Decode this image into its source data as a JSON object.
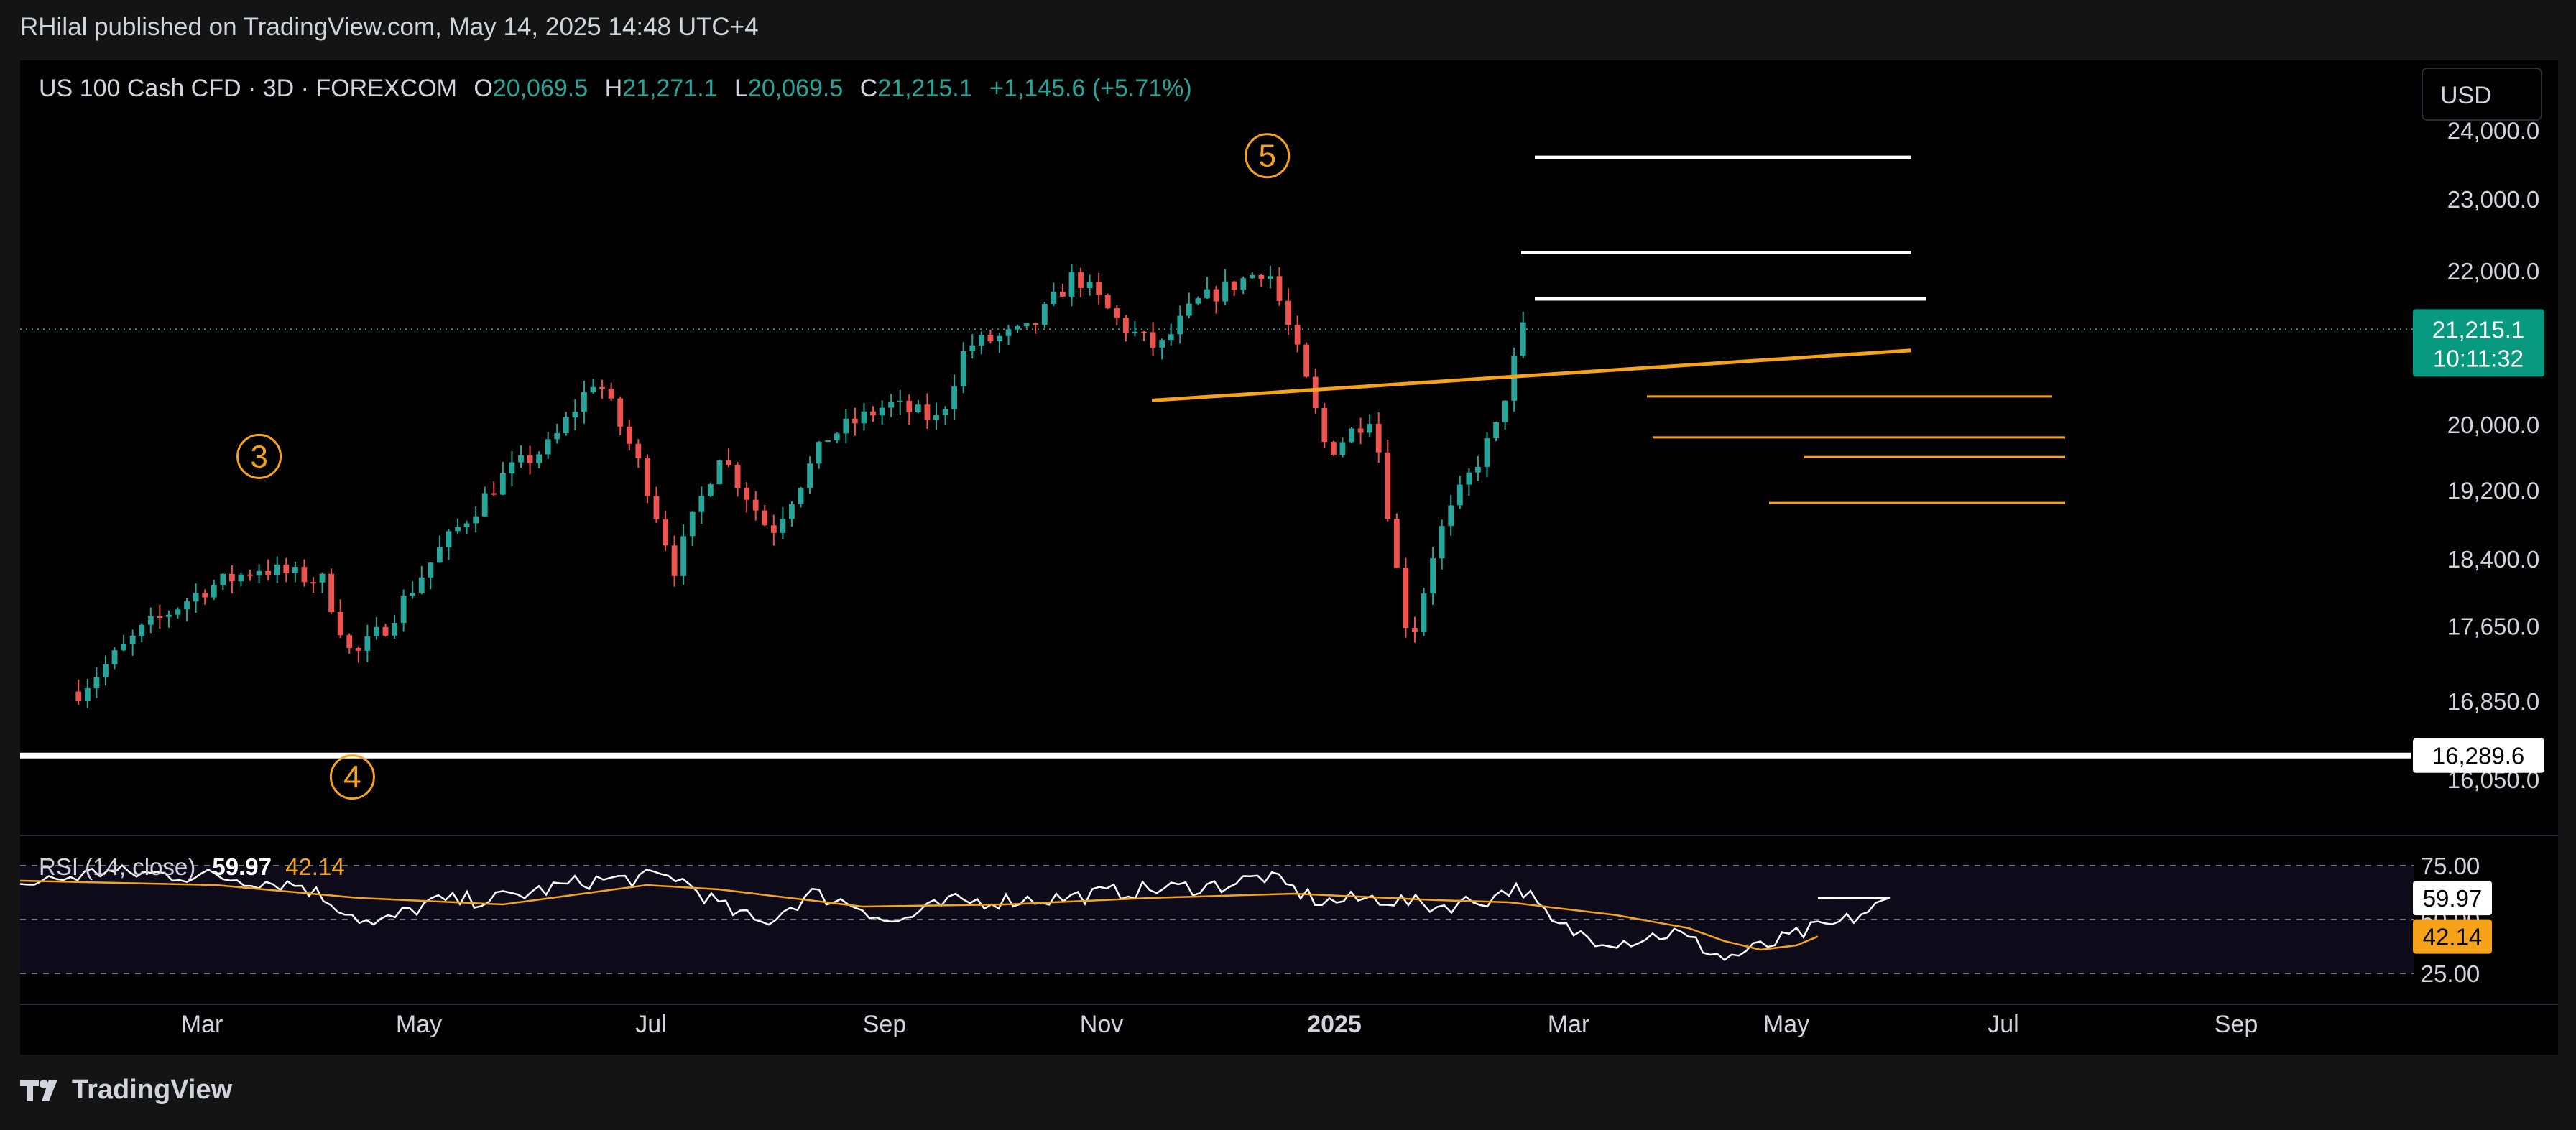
{
  "header": {
    "publish_text": "RHilal published on TradingView.com, May 14, 2025 14:48 UTC+4"
  },
  "legend": {
    "symbol": "US 100 Cash CFD · 3D · FOREXCOM",
    "open_label": "O",
    "open": "20,069.5",
    "high_label": "H",
    "high": "21,271.1",
    "low_label": "L",
    "low": "20,069.5",
    "close_label": "C",
    "close": "21,215.1",
    "change": "+1,145.6 (+5.71%)"
  },
  "currency_button": "USD",
  "price_axis": {
    "ticks": [
      "24,000.0",
      "23,000.0",
      "22,000.0",
      "20,000.0",
      "19,200.0",
      "18,400.0",
      "17,650.0",
      "16,850.0",
      "16,050.0"
    ],
    "current_price_label": "21,215.1",
    "countdown_label": "10:11:32",
    "support_label": "16,289.6"
  },
  "time_axis": {
    "ticks": [
      "Mar",
      "May",
      "Jul",
      "Sep",
      "Nov",
      "2025",
      "Mar",
      "May",
      "Jul",
      "Sep"
    ]
  },
  "wave_labels": [
    "3",
    "4",
    "5"
  ],
  "rsi": {
    "title": "RSI (14, close)",
    "value": "59.97",
    "ma_value": "42.14",
    "levels": [
      "75.00",
      "50.00",
      "25.00"
    ]
  },
  "colors": {
    "up": "#26a69a",
    "down": "#ef5350",
    "annotation": "#f7a21b",
    "rsi_line": "#ffffff",
    "rsi_ma": "#f7a21b",
    "price_badge": "#089981"
  },
  "footer": {
    "brand": "TradingView"
  },
  "chart_data": {
    "type": "candlestick",
    "symbol": "US 100 Cash CFD",
    "timeframe": "3D",
    "price_scale": "log",
    "approximate_path": [
      [
        "2024-01-20",
        16950
      ],
      [
        "2024-02-10",
        17600
      ],
      [
        "2024-03-01",
        18050
      ],
      [
        "2024-03-20",
        18300
      ],
      [
        "2024-04-10",
        18150
      ],
      [
        "2024-04-20",
        17300
      ],
      [
        "2024-05-01",
        17650
      ],
      [
        "2024-05-20",
        18550
      ],
      [
        "2024-06-10",
        19400
      ],
      [
        "2024-06-25",
        19750
      ],
      [
        "2024-07-10",
        20600
      ],
      [
        "2024-07-25",
        19450
      ],
      [
        "2024-08-05",
        18300
      ],
      [
        "2024-08-20",
        19650
      ],
      [
        "2024-09-06",
        18700
      ],
      [
        "2024-09-25",
        19850
      ],
      [
        "2024-10-15",
        20250
      ],
      [
        "2024-11-01",
        20050
      ],
      [
        "2024-11-10",
        21000
      ],
      [
        "2024-12-01",
        21200
      ],
      [
        "2024-12-16",
        21950
      ],
      [
        "2025-01-01",
        21250
      ],
      [
        "2025-01-13",
        20950
      ],
      [
        "2025-01-25",
        21550
      ],
      [
        "2025-02-18",
        22050
      ],
      [
        "2025-02-28",
        20900
      ],
      [
        "2025-03-10",
        19650
      ],
      [
        "2025-03-25",
        20150
      ],
      [
        "2025-04-04",
        17800
      ],
      [
        "2025-04-07",
        17500
      ],
      [
        "2025-04-15",
        18600
      ],
      [
        "2025-04-25",
        19300
      ],
      [
        "2025-05-05",
        19950
      ],
      [
        "2025-05-14",
        21215
      ]
    ],
    "annotations": {
      "support_level": 16289.6,
      "waves": [
        {
          "label": "3",
          "date": "2024-03-20"
        },
        {
          "label": "4",
          "date": "2024-04-20"
        },
        {
          "label": "5",
          "date": "2025-02-18"
        }
      ]
    },
    "rsi": {
      "period": 14,
      "value": 59.97,
      "ma": 42.14,
      "levels": [
        75,
        50,
        25
      ]
    }
  }
}
